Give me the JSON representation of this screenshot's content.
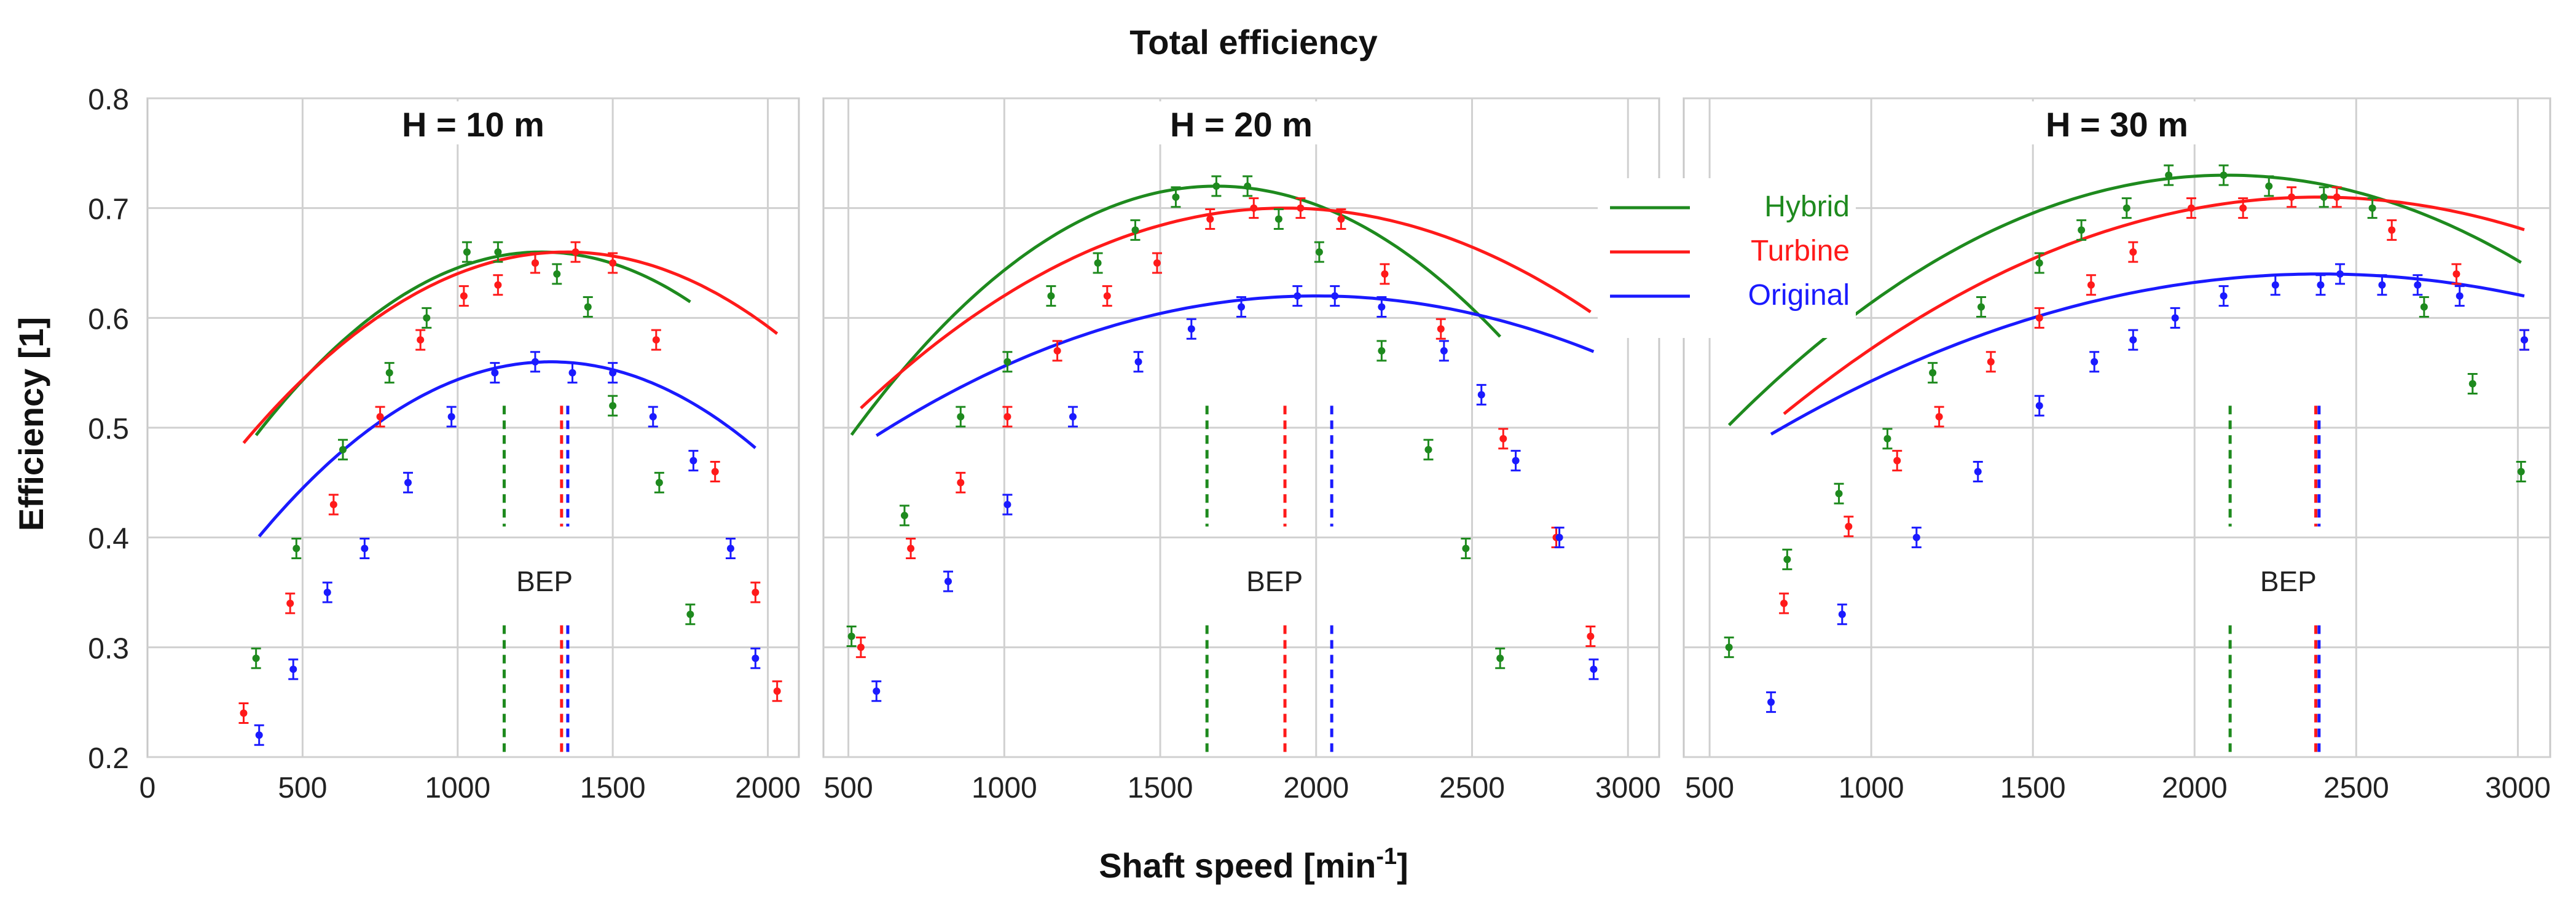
{
  "chart_data": {
    "type": "line",
    "title": "Total efficiency",
    "xlabel": "Shaft speed [min",
    "xlabel_sup": "-1",
    "xlabel_close": "]",
    "ylabel": "Efficiency [1]",
    "ylim": [
      0.2,
      0.8
    ],
    "yticks": [
      "0.8",
      "0.7",
      "0.6",
      "0.5",
      "0.4",
      "0.3",
      "0.2"
    ],
    "legend": {
      "placement": "middle-right",
      "entries": [
        {
          "name": "Hybrid",
          "color": "#1e8a1e"
        },
        {
          "name": "Turbine",
          "color": "#ff1a1a"
        },
        {
          "name": "Original",
          "color": "#1a1aff"
        }
      ]
    },
    "bep_label": "BEP",
    "panels": [
      {
        "title": "H = 10 m",
        "xlim": [
          0,
          2100
        ],
        "xticks": [
          0,
          500,
          1000,
          1500,
          2000
        ],
        "xtick_labels": [
          "0",
          "500",
          "1000",
          "1500",
          "2000"
        ],
        "series": [
          {
            "name": "Hybrid",
            "curve_coef": [
              5.52e-07,
              1.27,
              3.6
            ],
            "points": [
              [
                350,
                0.29
              ],
              [
                480,
                0.39
              ],
              [
                630,
                0.48
              ],
              [
                780,
                0.55
              ],
              [
                900,
                0.6
              ],
              [
                1030,
                0.66
              ],
              [
                1130,
                0.66
              ],
              [
                1250,
                0.65
              ],
              [
                1320,
                0.64
              ],
              [
                1420,
                0.61
              ],
              [
                1500,
                0.52
              ],
              [
                1650,
                0.45
              ],
              [
                1750,
                0.33
              ]
            ],
            "bep": 1150
          },
          {
            "name": "Turbine",
            "curve_coef": [
              4.02e-07,
              1.35,
              3.0
            ],
            "points": [
              [
                310,
                0.24
              ],
              [
                460,
                0.34
              ],
              [
                600,
                0.43
              ],
              [
                750,
                0.51
              ],
              [
                880,
                0.58
              ],
              [
                1020,
                0.62
              ],
              [
                1130,
                0.63
              ],
              [
                1250,
                0.65
              ],
              [
                1380,
                0.66
              ],
              [
                1500,
                0.65
              ],
              [
                1640,
                0.58
              ],
              [
                1830,
                0.46
              ],
              [
                1960,
                0.35
              ],
              [
                2030,
                0.26
              ]
            ],
            "bep": 1335
          },
          {
            "name": "Original",
            "curve_coef": [
              3.6e-07,
              1.3,
              2.0
            ],
            "points": [
              [
                360,
                0.22
              ],
              [
                470,
                0.28
              ],
              [
                580,
                0.35
              ],
              [
                700,
                0.39
              ],
              [
                840,
                0.45
              ],
              [
                980,
                0.51
              ],
              [
                1120,
                0.55
              ],
              [
                1250,
                0.56
              ],
              [
                1370,
                0.55
              ],
              [
                1500,
                0.55
              ],
              [
                1630,
                0.51
              ],
              [
                1760,
                0.47
              ],
              [
                1880,
                0.39
              ],
              [
                1960,
                0.29
              ]
            ],
            "bep": 1355
          }
        ]
      },
      {
        "title": "H = 20 m",
        "xlim": [
          420,
          3100
        ],
        "xticks": [
          500,
          1000,
          1500,
          2000,
          2500,
          3000
        ],
        "xtick_labels": [
          "500",
          "1000",
          "1500",
          "2000",
          "2500",
          "3000"
        ],
        "series": [
          {
            "name": "Hybrid",
            "curve_coef": [
              3.31e-07,
              1.68,
              2.0
            ],
            "points": [
              [
                510,
                0.31
              ],
              [
                680,
                0.42
              ],
              [
                860,
                0.51
              ],
              [
                1010,
                0.56
              ],
              [
                1150,
                0.62
              ],
              [
                1300,
                0.65
              ],
              [
                1420,
                0.68
              ],
              [
                1550,
                0.71
              ],
              [
                1680,
                0.72
              ],
              [
                1780,
                0.72
              ],
              [
                1880,
                0.69
              ],
              [
                2010,
                0.66
              ],
              [
                2210,
                0.57
              ],
              [
                2360,
                0.48
              ],
              [
                2480,
                0.39
              ],
              [
                2590,
                0.29
              ]
            ],
            "bep": 1650
          },
          {
            "name": "Turbine",
            "curve_coef": [
              1.97e-07,
              1.9,
              2.0
            ],
            "points": [
              [
                540,
                0.3
              ],
              [
                700,
                0.39
              ],
              [
                860,
                0.45
              ],
              [
                1010,
                0.51
              ],
              [
                1170,
                0.57
              ],
              [
                1330,
                0.62
              ],
              [
                1490,
                0.65
              ],
              [
                1660,
                0.69
              ],
              [
                1800,
                0.7
              ],
              [
                1950,
                0.7
              ],
              [
                2080,
                0.69
              ],
              [
                2220,
                0.64
              ],
              [
                2400,
                0.59
              ],
              [
                2600,
                0.49
              ],
              [
                2770,
                0.4
              ],
              [
                2880,
                0.31
              ]
            ],
            "bep": 1900
          },
          {
            "name": "Original",
            "curve_coef": [
              1.28e-07,
              2.0,
              2.0
            ],
            "points": [
              [
                590,
                0.26
              ],
              [
                820,
                0.36
              ],
              [
                1010,
                0.43
              ],
              [
                1220,
                0.51
              ],
              [
                1430,
                0.56
              ],
              [
                1600,
                0.59
              ],
              [
                1760,
                0.61
              ],
              [
                1940,
                0.62
              ],
              [
                2060,
                0.62
              ],
              [
                2210,
                0.61
              ],
              [
                2410,
                0.57
              ],
              [
                2530,
                0.53
              ],
              [
                2640,
                0.47
              ],
              [
                2780,
                0.4
              ],
              [
                2890,
                0.28
              ]
            ],
            "bep": 2050
          }
        ]
      },
      {
        "title": "H = 30 m",
        "xlim": [
          420,
          3100
        ],
        "xticks": [
          500,
          1000,
          1500,
          2000,
          2500,
          3000
        ],
        "xtick_labels": [
          "500",
          "1000",
          "1500",
          "2000",
          "2500",
          "3000"
        ],
        "series": [
          {
            "name": "Hybrid",
            "curve_coef": [
              1.92e-07,
              2.1,
              2.0
            ],
            "points": [
              [
                560,
                0.3
              ],
              [
                740,
                0.38
              ],
              [
                900,
                0.44
              ],
              [
                1050,
                0.49
              ],
              [
                1190,
                0.55
              ],
              [
                1340,
                0.61
              ],
              [
                1520,
                0.65
              ],
              [
                1650,
                0.68
              ],
              [
                1790,
                0.7
              ],
              [
                1920,
                0.73
              ],
              [
                2090,
                0.73
              ],
              [
                2230,
                0.72
              ],
              [
                2400,
                0.71
              ],
              [
                2550,
                0.7
              ],
              [
                2710,
                0.61
              ],
              [
                2860,
                0.54
              ],
              [
                3010,
                0.46
              ]
            ],
            "bep": 2110
          },
          {
            "name": "Turbine",
            "curve_coef": [
              1.45e-07,
              2.38,
              2.0
            ],
            "points": [
              [
                730,
                0.34
              ],
              [
                930,
                0.41
              ],
              [
                1080,
                0.47
              ],
              [
                1210,
                0.51
              ],
              [
                1370,
                0.56
              ],
              [
                1520,
                0.6
              ],
              [
                1680,
                0.63
              ],
              [
                1810,
                0.66
              ],
              [
                1990,
                0.7
              ],
              [
                2150,
                0.7
              ],
              [
                2300,
                0.71
              ],
              [
                2440,
                0.71
              ],
              [
                2610,
                0.68
              ],
              [
                2810,
                0.64
              ],
              [
                3020,
                0.58
              ]
            ],
            "bep": 2375
          },
          {
            "name": "Original",
            "curve_coef": [
              1.01e-07,
              2.39,
              2.0
            ],
            "points": [
              [
                690,
                0.25
              ],
              [
                910,
                0.33
              ],
              [
                1140,
                0.4
              ],
              [
                1330,
                0.46
              ],
              [
                1520,
                0.52
              ],
              [
                1690,
                0.56
              ],
              [
                1810,
                0.58
              ],
              [
                1940,
                0.6
              ],
              [
                2090,
                0.62
              ],
              [
                2250,
                0.63
              ],
              [
                2390,
                0.63
              ],
              [
                2450,
                0.64
              ],
              [
                2580,
                0.63
              ],
              [
                2690,
                0.63
              ],
              [
                2820,
                0.62
              ],
              [
                3020,
                0.58
              ]
            ],
            "bep": 2385
          }
        ]
      }
    ]
  }
}
